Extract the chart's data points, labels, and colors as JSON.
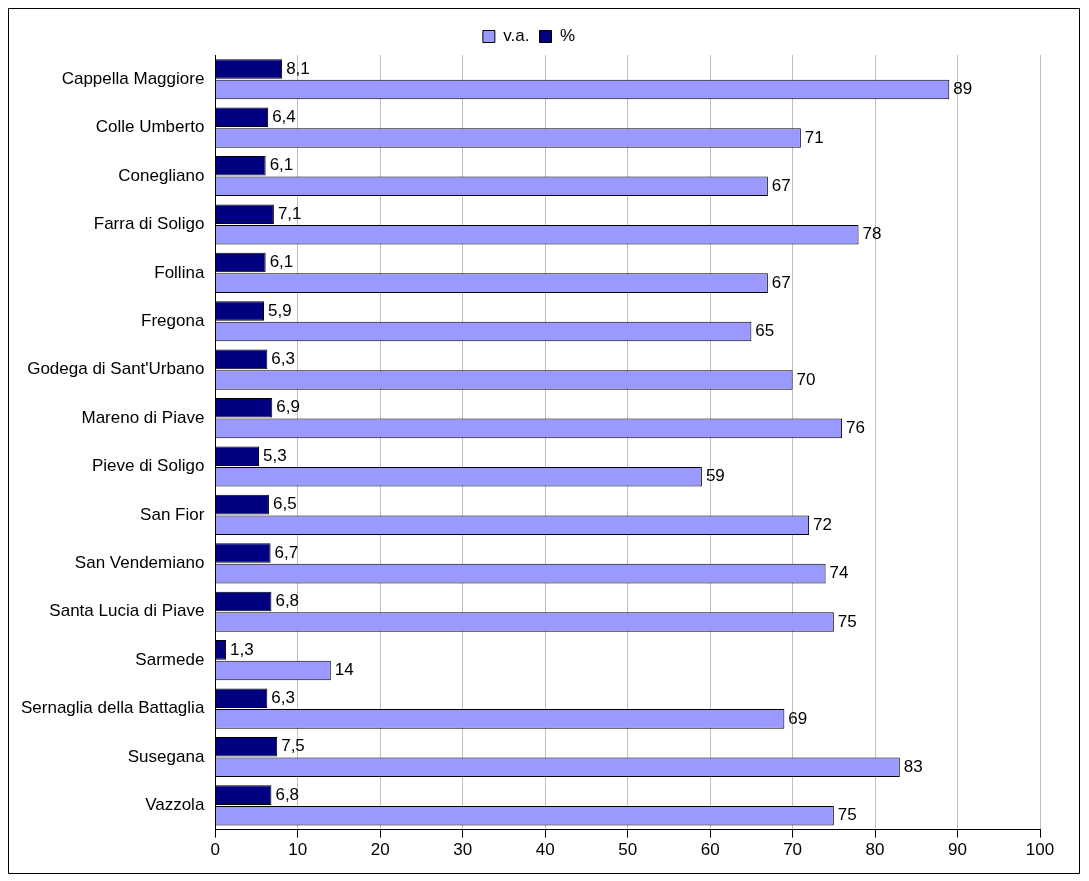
{
  "chart_data": {
    "type": "bar",
    "orientation": "horizontal",
    "categories": [
      "Cappella Maggiore",
      "Colle Umberto",
      "Conegliano",
      "Farra di Soligo",
      "Follina",
      "Fregona",
      "Godega di Sant'Urbano",
      "Mareno di Piave",
      "Pieve di Soligo",
      "San Fior",
      "San Vendemiano",
      "Santa Lucia di Piave",
      "Sarmede",
      "Sernaglia della Battaglia",
      "Susegana",
      "Vazzola"
    ],
    "series": [
      {
        "name": "%",
        "color": "#000080",
        "values": [
          8.1,
          6.4,
          6.1,
          7.1,
          6.1,
          5.9,
          6.3,
          6.9,
          5.3,
          6.5,
          6.7,
          6.8,
          1.3,
          6.3,
          7.5,
          6.8
        ],
        "value_labels": [
          "8,1",
          "6,4",
          "6,1",
          "7,1",
          "6,1",
          "5,9",
          "6,3",
          "6,9",
          "5,3",
          "6,5",
          "6,7",
          "6,8",
          "1,3",
          "6,3",
          "7,5",
          "6,8"
        ]
      },
      {
        "name": "v.a.",
        "color": "#9999ff",
        "values": [
          89,
          71,
          67,
          78,
          67,
          65,
          70,
          76,
          59,
          72,
          74,
          75,
          14,
          69,
          83,
          75
        ],
        "value_labels": [
          "89",
          "71",
          "67",
          "78",
          "67",
          "65",
          "70",
          "76",
          "59",
          "72",
          "74",
          "75",
          "14",
          "69",
          "83",
          "75"
        ]
      }
    ],
    "xlim": [
      0,
      100
    ],
    "xticks": [
      0,
      10,
      20,
      30,
      40,
      50,
      60,
      70,
      80,
      90,
      100
    ],
    "grid": "x",
    "legend": "top"
  }
}
